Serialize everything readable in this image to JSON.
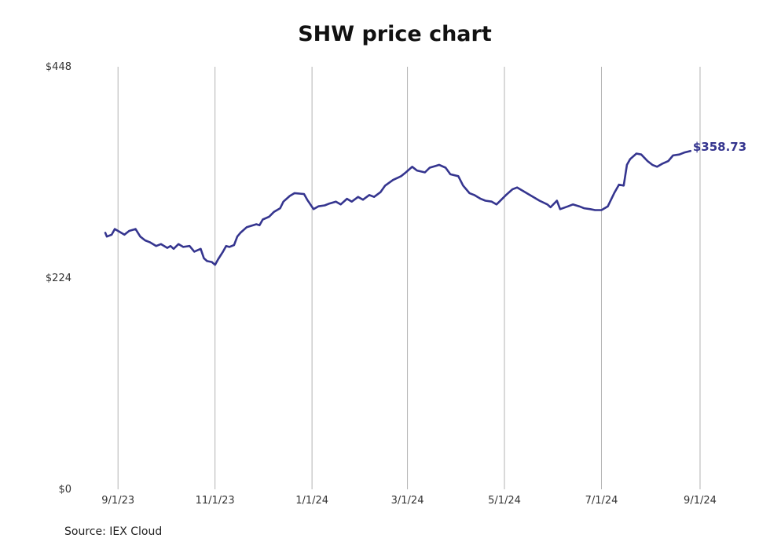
{
  "chart_data": {
    "type": "line",
    "title": "SHW price chart",
    "source": "Source: IEX Cloud",
    "xlabel": "",
    "ylabel": "",
    "ylim": [
      0,
      448
    ],
    "xlim": [
      "2023-08-24",
      "2024-09-02"
    ],
    "x_ticks": [
      {
        "date": "2023-09-01",
        "label": "9/1/23"
      },
      {
        "date": "2023-11-01",
        "label": "11/1/23"
      },
      {
        "date": "2024-01-01",
        "label": "1/1/24"
      },
      {
        "date": "2024-03-01",
        "label": "3/1/24"
      },
      {
        "date": "2024-05-01",
        "label": "5/1/24"
      },
      {
        "date": "2024-07-01",
        "label": "7/1/24"
      },
      {
        "date": "2024-09-01",
        "label": "9/1/24"
      }
    ],
    "y_ticks": [
      {
        "value": 0,
        "label": "$0"
      },
      {
        "value": 224,
        "label": "$224"
      },
      {
        "value": 448,
        "label": "$448"
      }
    ],
    "grid": {
      "vertical": true,
      "horizontal": false
    },
    "line_color": "#35358f",
    "last_value_label": "$358.73",
    "series": [
      {
        "values": [
          [
            "2023-08-24",
            272
          ],
          [
            "2023-08-25",
            268
          ],
          [
            "2023-08-28",
            270
          ],
          [
            "2023-08-30",
            276
          ],
          [
            "2023-09-01",
            274
          ],
          [
            "2023-09-05",
            270
          ],
          [
            "2023-09-08",
            274
          ],
          [
            "2023-09-12",
            276
          ],
          [
            "2023-09-15",
            268
          ],
          [
            "2023-09-18",
            264
          ],
          [
            "2023-09-21",
            262
          ],
          [
            "2023-09-25",
            258
          ],
          [
            "2023-09-28",
            260
          ],
          [
            "2023-10-02",
            256
          ],
          [
            "2023-10-04",
            258
          ],
          [
            "2023-10-06",
            255
          ],
          [
            "2023-10-09",
            260
          ],
          [
            "2023-10-12",
            257
          ],
          [
            "2023-10-16",
            258
          ],
          [
            "2023-10-19",
            252
          ],
          [
            "2023-10-23",
            255
          ],
          [
            "2023-10-25",
            245
          ],
          [
            "2023-10-27",
            242
          ],
          [
            "2023-10-30",
            241
          ],
          [
            "2023-11-01",
            238
          ],
          [
            "2023-11-03",
            244
          ],
          [
            "2023-11-06",
            252
          ],
          [
            "2023-11-08",
            258
          ],
          [
            "2023-11-10",
            257
          ],
          [
            "2023-11-13",
            259
          ],
          [
            "2023-11-15",
            268
          ],
          [
            "2023-11-17",
            272
          ],
          [
            "2023-11-21",
            278
          ],
          [
            "2023-11-27",
            281
          ],
          [
            "2023-11-29",
            280
          ],
          [
            "2023-12-01",
            286
          ],
          [
            "2023-12-05",
            289
          ],
          [
            "2023-12-08",
            294
          ],
          [
            "2023-12-12",
            298
          ],
          [
            "2023-12-14",
            305
          ],
          [
            "2023-12-18",
            311
          ],
          [
            "2023-12-21",
            314
          ],
          [
            "2023-12-27",
            313
          ],
          [
            "2023-12-29",
            307
          ],
          [
            "2024-01-02",
            297
          ],
          [
            "2024-01-05",
            300
          ],
          [
            "2024-01-09",
            301
          ],
          [
            "2024-01-12",
            303
          ],
          [
            "2024-01-16",
            305
          ],
          [
            "2024-01-19",
            302
          ],
          [
            "2024-01-23",
            308
          ],
          [
            "2024-01-26",
            305
          ],
          [
            "2024-01-30",
            310
          ],
          [
            "2024-02-02",
            307
          ],
          [
            "2024-02-06",
            312
          ],
          [
            "2024-02-09",
            310
          ],
          [
            "2024-02-13",
            315
          ],
          [
            "2024-02-16",
            322
          ],
          [
            "2024-02-21",
            328
          ],
          [
            "2024-02-26",
            332
          ],
          [
            "2024-02-29",
            336
          ],
          [
            "2024-03-04",
            342
          ],
          [
            "2024-03-07",
            338
          ],
          [
            "2024-03-12",
            336
          ],
          [
            "2024-03-15",
            341
          ],
          [
            "2024-03-19",
            343
          ],
          [
            "2024-03-21",
            344
          ],
          [
            "2024-03-25",
            341
          ],
          [
            "2024-03-28",
            334
          ],
          [
            "2024-04-02",
            332
          ],
          [
            "2024-04-05",
            322
          ],
          [
            "2024-04-09",
            314
          ],
          [
            "2024-04-12",
            312
          ],
          [
            "2024-04-16",
            308
          ],
          [
            "2024-04-19",
            306
          ],
          [
            "2024-04-23",
            305
          ],
          [
            "2024-04-26",
            302
          ],
          [
            "2024-04-29",
            307
          ],
          [
            "2024-05-02",
            312
          ],
          [
            "2024-05-06",
            318
          ],
          [
            "2024-05-09",
            320
          ],
          [
            "2024-05-13",
            316
          ],
          [
            "2024-05-16",
            313
          ],
          [
            "2024-05-20",
            309
          ],
          [
            "2024-05-23",
            306
          ],
          [
            "2024-05-28",
            302
          ],
          [
            "2024-05-30",
            299
          ],
          [
            "2024-06-03",
            306
          ],
          [
            "2024-06-05",
            297
          ],
          [
            "2024-06-10",
            300
          ],
          [
            "2024-06-13",
            302
          ],
          [
            "2024-06-17",
            300
          ],
          [
            "2024-06-20",
            298
          ],
          [
            "2024-06-24",
            297
          ],
          [
            "2024-06-27",
            296
          ],
          [
            "2024-07-01",
            296
          ],
          [
            "2024-07-05",
            300
          ],
          [
            "2024-07-09",
            314
          ],
          [
            "2024-07-12",
            323
          ],
          [
            "2024-07-15",
            322
          ],
          [
            "2024-07-17",
            344
          ],
          [
            "2024-07-19",
            350
          ],
          [
            "2024-07-23",
            356
          ],
          [
            "2024-07-26",
            355
          ],
          [
            "2024-07-30",
            348
          ],
          [
            "2024-08-02",
            344
          ],
          [
            "2024-08-05",
            342
          ],
          [
            "2024-08-08",
            345
          ],
          [
            "2024-08-12",
            348
          ],
          [
            "2024-08-15",
            354
          ],
          [
            "2024-08-19",
            355
          ],
          [
            "2024-08-22",
            357
          ],
          [
            "2024-08-26",
            358.73
          ]
        ]
      }
    ]
  }
}
